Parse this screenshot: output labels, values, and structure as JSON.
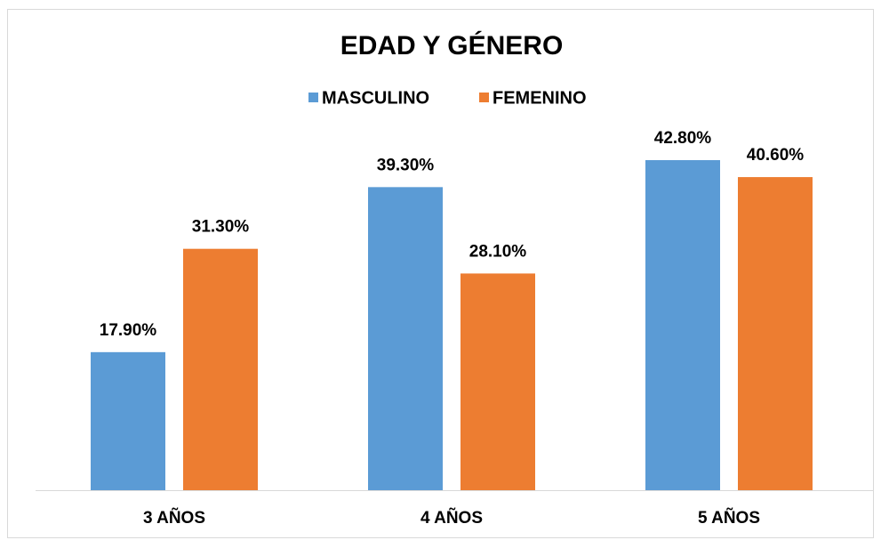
{
  "chart_data": {
    "type": "bar",
    "title": "EDAD Y GÉNERO",
    "categories": [
      "3 AÑOS",
      "4 AÑOS",
      "5 AÑOS"
    ],
    "series": [
      {
        "name": "MASCULINO",
        "color": "#5b9bd5",
        "values": [
          17.9,
          39.3,
          42.8
        ],
        "value_labels": [
          "17.90%",
          "39.30%",
          "42.80%"
        ]
      },
      {
        "name": "FEMENINO",
        "color": "#ed7d31",
        "values": [
          31.3,
          28.1,
          40.6
        ],
        "value_labels": [
          "31.30%",
          "28.10%",
          "40.60%"
        ]
      }
    ],
    "legend": "top"
  }
}
